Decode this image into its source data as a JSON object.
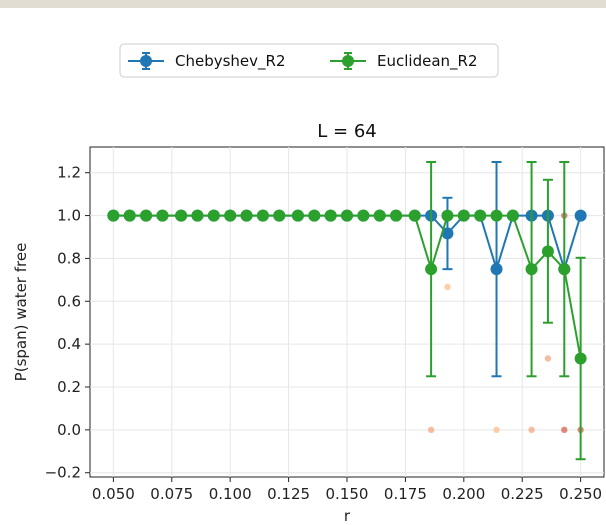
{
  "chart_data": {
    "type": "line",
    "title": "L = 64",
    "xlabel": "r",
    "ylabel": "P(span) water free",
    "xlim": [
      0.04,
      0.26
    ],
    "ylim": [
      -0.22,
      1.32
    ],
    "xticks": [
      "0.050",
      "0.075",
      "0.100",
      "0.125",
      "0.150",
      "0.175",
      "0.200",
      "0.225",
      "0.250"
    ],
    "yticks": [
      "-0.2",
      "0.0",
      "0.2",
      "0.4",
      "0.6",
      "0.8",
      "1.0",
      "1.2"
    ],
    "grid": true,
    "legend_position": "top-center",
    "series": [
      {
        "name": "Chebyshev_R2",
        "color": "#1f77b4",
        "points": [
          {
            "x": 0.05,
            "y": 1.0
          },
          {
            "x": 0.057,
            "y": 1.0
          },
          {
            "x": 0.064,
            "y": 1.0
          },
          {
            "x": 0.071,
            "y": 1.0
          },
          {
            "x": 0.079,
            "y": 1.0
          },
          {
            "x": 0.086,
            "y": 1.0
          },
          {
            "x": 0.093,
            "y": 1.0
          },
          {
            "x": 0.1,
            "y": 1.0
          },
          {
            "x": 0.107,
            "y": 1.0
          },
          {
            "x": 0.114,
            "y": 1.0
          },
          {
            "x": 0.121,
            "y": 1.0
          },
          {
            "x": 0.129,
            "y": 1.0
          },
          {
            "x": 0.136,
            "y": 1.0
          },
          {
            "x": 0.143,
            "y": 1.0
          },
          {
            "x": 0.15,
            "y": 1.0
          },
          {
            "x": 0.157,
            "y": 1.0
          },
          {
            "x": 0.164,
            "y": 1.0
          },
          {
            "x": 0.171,
            "y": 1.0
          },
          {
            "x": 0.179,
            "y": 1.0
          },
          {
            "x": 0.186,
            "y": 1.0
          },
          {
            "x": 0.193,
            "y": 0.917,
            "lo": 0.75,
            "hi": 1.083
          },
          {
            "x": 0.2,
            "y": 1.0
          },
          {
            "x": 0.207,
            "y": 1.0
          },
          {
            "x": 0.214,
            "y": 0.75,
            "lo": 0.25,
            "hi": 1.25
          },
          {
            "x": 0.221,
            "y": 1.0
          },
          {
            "x": 0.229,
            "y": 1.0
          },
          {
            "x": 0.236,
            "y": 1.0
          },
          {
            "x": 0.243,
            "y": 0.75
          },
          {
            "x": 0.25,
            "y": 1.0
          }
        ]
      },
      {
        "name": "Euclidean_R2",
        "color": "#2ca02c",
        "points": [
          {
            "x": 0.05,
            "y": 1.0
          },
          {
            "x": 0.057,
            "y": 1.0
          },
          {
            "x": 0.064,
            "y": 1.0
          },
          {
            "x": 0.071,
            "y": 1.0
          },
          {
            "x": 0.079,
            "y": 1.0
          },
          {
            "x": 0.086,
            "y": 1.0
          },
          {
            "x": 0.093,
            "y": 1.0
          },
          {
            "x": 0.1,
            "y": 1.0
          },
          {
            "x": 0.107,
            "y": 1.0
          },
          {
            "x": 0.114,
            "y": 1.0
          },
          {
            "x": 0.121,
            "y": 1.0
          },
          {
            "x": 0.129,
            "y": 1.0
          },
          {
            "x": 0.136,
            "y": 1.0
          },
          {
            "x": 0.143,
            "y": 1.0
          },
          {
            "x": 0.15,
            "y": 1.0
          },
          {
            "x": 0.157,
            "y": 1.0
          },
          {
            "x": 0.164,
            "y": 1.0
          },
          {
            "x": 0.171,
            "y": 1.0
          },
          {
            "x": 0.179,
            "y": 1.0
          },
          {
            "x": 0.186,
            "y": 0.75,
            "lo": 0.25,
            "hi": 1.25
          },
          {
            "x": 0.193,
            "y": 1.0
          },
          {
            "x": 0.2,
            "y": 1.0
          },
          {
            "x": 0.207,
            "y": 1.0
          },
          {
            "x": 0.214,
            "y": 1.0
          },
          {
            "x": 0.221,
            "y": 1.0
          },
          {
            "x": 0.229,
            "y": 0.75,
            "lo": 0.25,
            "hi": 1.25
          },
          {
            "x": 0.236,
            "y": 0.833,
            "lo": 0.5,
            "hi": 1.167
          },
          {
            "x": 0.243,
            "y": 0.75,
            "lo": 0.25,
            "hi": 1.25
          },
          {
            "x": 0.25,
            "y": 0.333,
            "lo": -0.137,
            "hi": 0.803
          }
        ]
      }
    ],
    "scatter_overlay": [
      {
        "x": 0.186,
        "y": 0.0,
        "color": "#f4a582"
      },
      {
        "x": 0.193,
        "y": 0.667,
        "color": "#fdbf8a"
      },
      {
        "x": 0.214,
        "y": 0.0,
        "color": "#fdbf8a"
      },
      {
        "x": 0.229,
        "y": 1.0,
        "color": "#d6604d"
      },
      {
        "x": 0.229,
        "y": 0.0,
        "color": "#f4a582"
      },
      {
        "x": 0.236,
        "y": 0.333,
        "color": "#f4a582"
      },
      {
        "x": 0.243,
        "y": 1.0,
        "color": "#d6604d"
      },
      {
        "x": 0.243,
        "y": 0.0,
        "color": "#d6604d"
      },
      {
        "x": 0.25,
        "y": 0.0,
        "color": "#d6604d"
      }
    ]
  }
}
